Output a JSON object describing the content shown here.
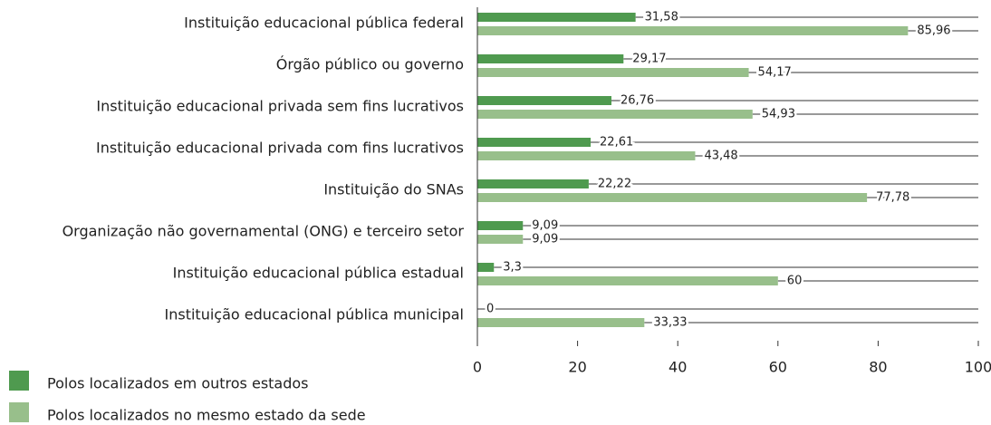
{
  "chart_data": {
    "type": "hbar",
    "categories": [
      "Instituição educacional pública federal",
      "Órgão público ou governo",
      "Instituição educacional privada sem fins lucrativos",
      "Instituição educacional privada com fins lucrativos",
      "Instituição do SNAs",
      "Organização não governamental (ONG) e terceiro setor",
      "Instituição educacional pública estadual",
      "Instituição educacional pública municipal"
    ],
    "series": [
      {
        "name": "Polos localizados em outros estados",
        "color": "#4f9a4f",
        "values": [
          31.58,
          29.17,
          26.76,
          22.61,
          22.22,
          9.09,
          3.3,
          0
        ],
        "value_labels": [
          "31,58",
          "29,17",
          "26,76",
          "22,61",
          "22,22",
          "9,09",
          "3,3",
          "0"
        ]
      },
      {
        "name": "Polos localizados no mesmo estado da sede",
        "color": "#98bf8b",
        "values": [
          85.96,
          54.17,
          54.93,
          43.48,
          77.78,
          9.09,
          60,
          33.33
        ],
        "value_labels": [
          "85,96",
          "54,17",
          "54,93",
          "43,48",
          "77,78",
          "9,09",
          "60",
          "33,33"
        ]
      }
    ],
    "xlim": [
      0,
      100
    ],
    "xticks": [
      0,
      20,
      40,
      60,
      80,
      100
    ]
  }
}
